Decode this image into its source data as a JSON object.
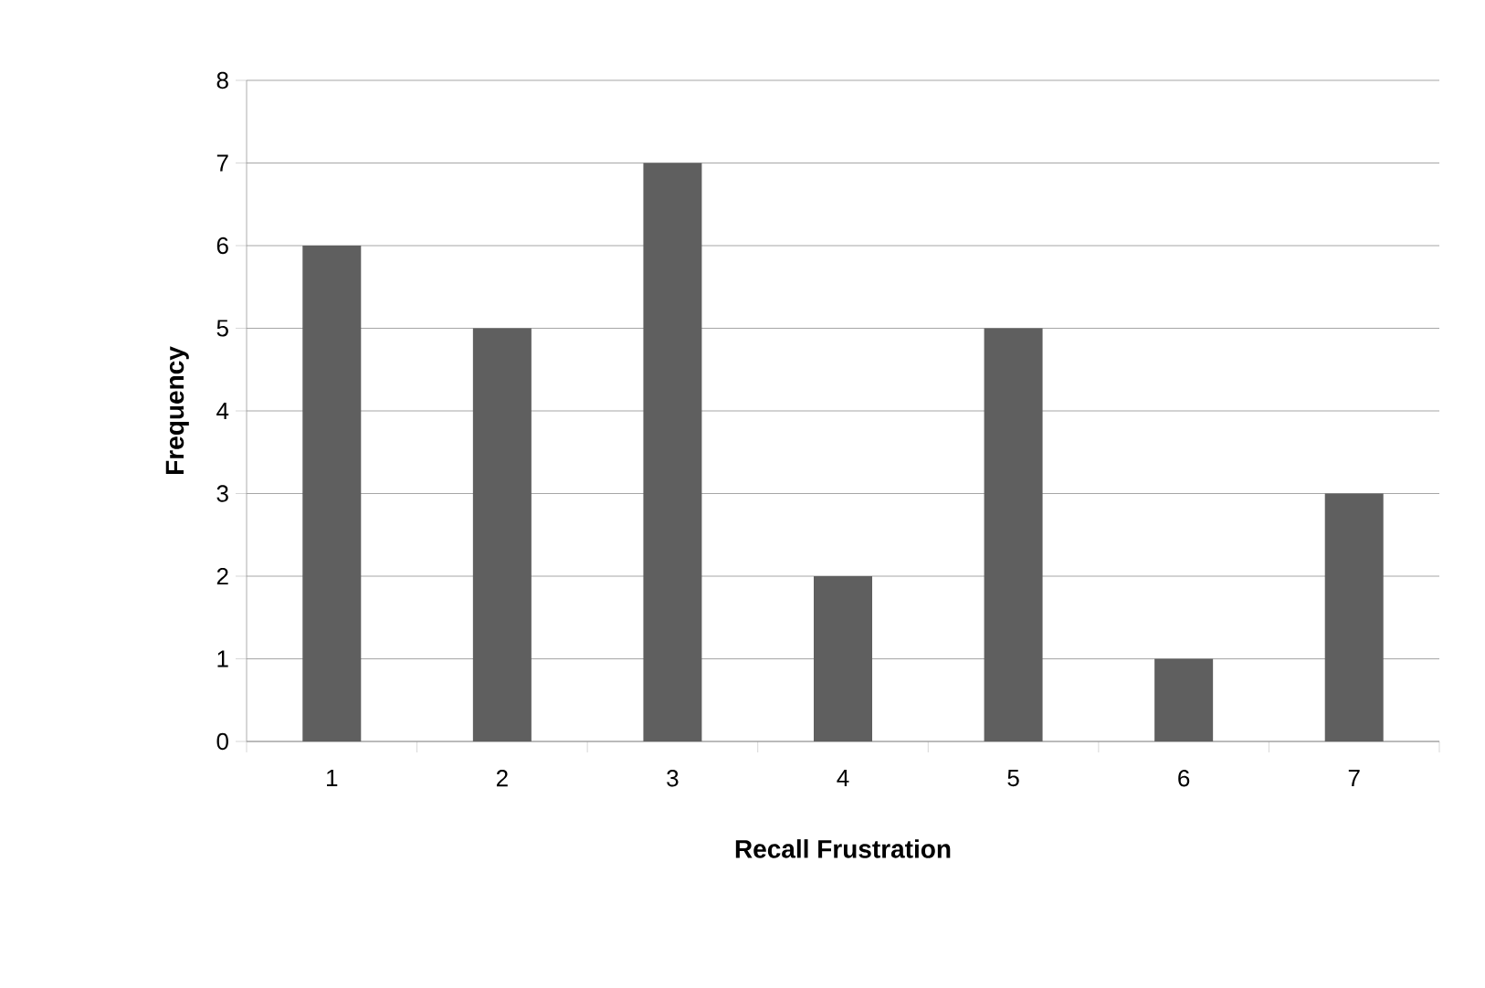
{
  "chart_data": {
    "type": "bar",
    "xlabel": "Recall Frustration",
    "ylabel": "Frequency",
    "categories": [
      "1",
      "2",
      "3",
      "4",
      "5",
      "6",
      "7"
    ],
    "values": [
      6,
      5,
      7,
      2,
      5,
      1,
      3
    ],
    "color": "#5f5f5f",
    "ylim": [
      0,
      8
    ],
    "yticks": [
      0,
      1,
      2,
      3,
      4,
      5,
      6,
      7,
      8
    ],
    "grid": "y"
  }
}
